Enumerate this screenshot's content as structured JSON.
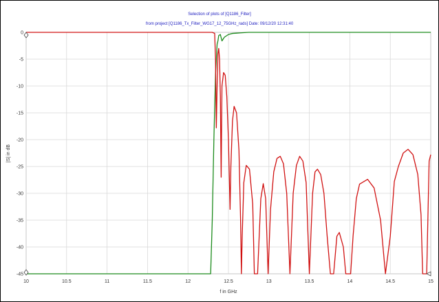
{
  "chart_data": {
    "type": "line",
    "title": "Selection of plots of [Q1186_Filter]",
    "subtitle": "from project [Q1186_Tx_Filter_WG17_12_75GHz_rads]   Date: 09/12/20 12:31:40",
    "xlabel": "f in GHz",
    "ylabel": "|S| in dB",
    "xlim": [
      10,
      15
    ],
    "ylim": [
      -45,
      0
    ],
    "x_ticks": [
      "10",
      "10.5",
      "11",
      "11.5",
      "12",
      "12.5",
      "13",
      "13.5",
      "14",
      "14.5",
      "15"
    ],
    "y_ticks": [
      "0",
      "-5",
      "-10",
      "-15",
      "-20",
      "-25",
      "-30",
      "-35",
      "-40",
      "-45"
    ],
    "grid": true,
    "series": [
      {
        "color": "#d01010",
        "values_description": "reflection",
        "x": [
          10,
          12.3,
          12.33,
          12.34,
          12.35,
          12.36,
          12.37,
          12.38,
          12.39,
          12.4,
          12.41,
          12.42,
          12.44,
          12.46,
          12.48,
          12.5,
          12.52,
          12.53,
          12.55,
          12.57,
          12.6,
          12.63,
          12.65,
          12.66,
          12.67,
          12.69,
          12.72,
          12.76,
          12.8,
          12.82,
          12.86,
          12.9,
          12.93,
          12.96,
          12.99,
          13.02,
          13.06,
          13.1,
          13.14,
          13.18,
          13.22,
          13.26,
          13.3,
          13.34,
          13.38,
          13.42,
          13.46,
          13.5,
          13.54,
          13.57,
          13.6,
          13.64,
          13.68,
          13.72,
          13.76,
          13.8,
          13.84,
          13.87,
          13.92,
          13.95,
          13.98,
          14.01,
          14.04,
          14.08,
          14.12,
          14.22,
          14.3,
          14.38,
          14.44,
          14.5,
          14.55,
          14.6,
          14.66,
          14.72,
          14.78,
          14.84,
          14.88,
          14.9,
          14.92,
          14.95,
          14.98,
          15.0
        ],
        "y": [
          0,
          0,
          -0.2,
          -5,
          -17.8,
          -10,
          -4,
          -3,
          -5,
          -12,
          -27,
          -10,
          -7.5,
          -8,
          -12,
          -20,
          -33,
          -25,
          -16.5,
          -13.8,
          -15,
          -22,
          -35,
          -45,
          -38,
          -28,
          -24.8,
          -25.5,
          -32,
          -45,
          -45,
          -31,
          -28.2,
          -31,
          -45,
          -33,
          -26,
          -23.5,
          -23.1,
          -24.5,
          -30,
          -45,
          -30,
          -24.8,
          -23.1,
          -24,
          -28,
          -45,
          -30,
          -26,
          -25.5,
          -26.5,
          -30,
          -38,
          -45,
          -45,
          -38,
          -37.3,
          -40,
          -45,
          -45,
          -45,
          -38,
          -31,
          -28.3,
          -27.4,
          -29,
          -35,
          -45,
          -38,
          -27.8,
          -25,
          -22.5,
          -21.8,
          -22.8,
          -26.5,
          -34,
          -45,
          -45,
          -45,
          -24,
          -22.8
        ]
      },
      {
        "color": "#1a8a1a",
        "values_description": "transmission",
        "x": [
          10,
          12.28,
          12.3,
          12.32,
          12.34,
          12.36,
          12.37,
          12.38,
          12.4,
          12.42,
          12.45,
          12.5,
          12.55,
          12.6,
          12.65,
          12.7,
          12.75,
          15.0
        ],
        "y": [
          -45,
          -45,
          -35,
          -20,
          -8,
          -2.2,
          -1.6,
          -0.6,
          -0.4,
          -1.6,
          -0.9,
          -0.4,
          -0.2,
          -0.15,
          -0.1,
          -0.05,
          0,
          0
        ]
      }
    ]
  }
}
